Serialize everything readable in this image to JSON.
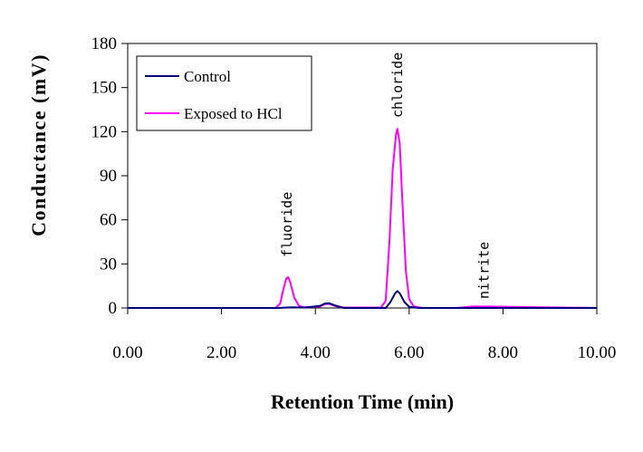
{
  "chart_data": {
    "type": "line",
    "title": "",
    "xlabel": "Retention Time (min)",
    "ylabel": "Conductance (mV)",
    "xlim": [
      0,
      10
    ],
    "ylim": [
      0,
      180
    ],
    "x_ticks": [
      0,
      2,
      4,
      6,
      8,
      10
    ],
    "x_tick_labels": [
      "0.00",
      "2.00",
      "4.00",
      "6.00",
      "8.00",
      "10.00"
    ],
    "y_ticks": [
      0,
      30,
      60,
      90,
      120,
      150,
      180
    ],
    "y_tick_labels": [
      "0",
      "30",
      "60",
      "90",
      "120",
      "150",
      "180"
    ],
    "grid": false,
    "legend_position": "top-left",
    "series": [
      {
        "name": "Control",
        "color": "#000080",
        "x": [
          0.0,
          1.65,
          2.75,
          3.2,
          3.5,
          3.8,
          4.1,
          4.2,
          4.3,
          4.4,
          4.6,
          5.5,
          5.6,
          5.7,
          5.75,
          5.8,
          5.9,
          6.0,
          6.2,
          7.0,
          7.7,
          10.0
        ],
        "y": [
          0,
          0,
          0,
          0,
          0.5,
          0.3,
          1.5,
          3,
          3.2,
          2,
          0,
          0,
          4,
          10,
          11.5,
          10,
          4,
          0.8,
          0,
          0,
          0,
          0
        ]
      },
      {
        "name": "Exposed to HCl",
        "color": "#ff00ff",
        "x": [
          0.0,
          1.65,
          2.75,
          3.15,
          3.25,
          3.32,
          3.38,
          3.42,
          3.47,
          3.55,
          3.65,
          3.75,
          4.1,
          4.2,
          4.3,
          4.4,
          4.6,
          5.4,
          5.5,
          5.58,
          5.65,
          5.72,
          5.75,
          5.8,
          5.86,
          5.93,
          6.0,
          6.1,
          6.3,
          7.0,
          7.35,
          7.65,
          10.0
        ],
        "y": [
          0,
          0,
          0,
          0,
          3,
          13,
          20,
          21,
          17,
          7,
          1.5,
          0.5,
          1,
          2.5,
          2.8,
          1.5,
          0.3,
          0.3,
          5,
          45,
          95,
          118,
          122,
          112,
          70,
          25,
          6,
          1,
          0,
          0,
          1,
          1,
          0
        ]
      }
    ],
    "annotations": [
      {
        "text": "fluoride",
        "x": 3.4
      },
      {
        "text": "chloride",
        "x": 5.75
      },
      {
        "text": "nitrite",
        "x": 7.6
      }
    ]
  }
}
